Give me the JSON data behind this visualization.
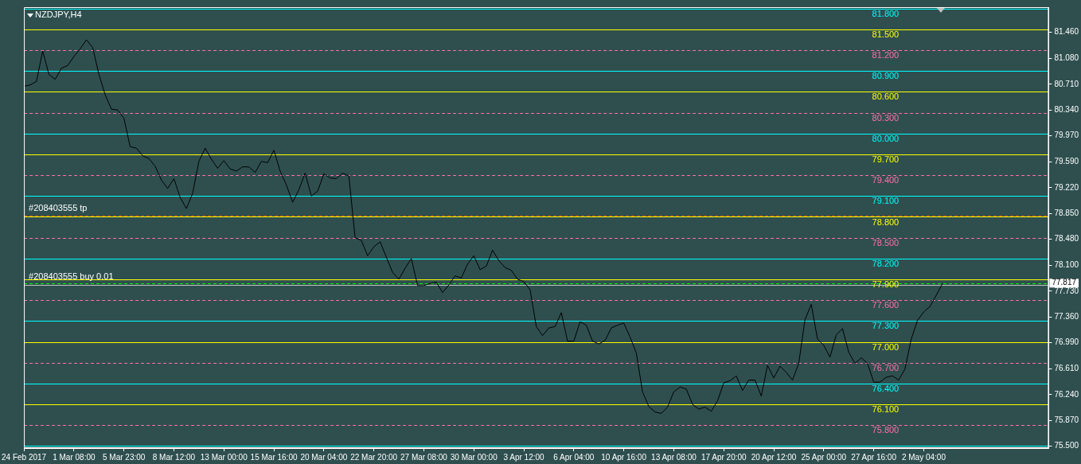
{
  "chart_data": {
    "type": "line",
    "title": "NZDJPY,H4",
    "categories": [
      "24 Feb 2017",
      null,
      null,
      null,
      null,
      null,
      null,
      null,
      "1 Mar 08:00",
      null,
      null,
      null,
      null,
      null,
      null,
      null,
      "5 Mar 23:00",
      null,
      null,
      null,
      null,
      null,
      null,
      null,
      "8 Mar 12:00",
      null,
      null,
      null,
      null,
      null,
      null,
      null,
      "13 Mar 00:00",
      null,
      null,
      null,
      null,
      null,
      null,
      null,
      "15 Mar 16:00",
      null,
      null,
      null,
      null,
      null,
      null,
      null,
      "20 Mar 04:00",
      null,
      null,
      null,
      null,
      null,
      null,
      null,
      "22 Mar 20:00",
      null,
      null,
      null,
      null,
      null,
      null,
      null,
      "27 Mar 08:00",
      null,
      null,
      null,
      null,
      null,
      null,
      null,
      "30 Mar 00:00",
      null,
      null,
      null,
      null,
      null,
      null,
      null,
      "3 Apr 12:00",
      null,
      null,
      null,
      null,
      null,
      null,
      null,
      "6 Apr 04:00",
      null,
      null,
      null,
      null,
      null,
      null,
      null,
      "10 Apr 16:00",
      null,
      null,
      null,
      null,
      null,
      null,
      null,
      "13 Apr 08:00",
      null,
      null,
      null,
      null,
      null,
      null,
      null,
      "17 Apr 20:00",
      null,
      null,
      null,
      null,
      null,
      null,
      null,
      "20 Apr 12:00",
      null,
      null,
      null,
      null,
      null,
      null,
      null,
      "25 Apr 00:00",
      null,
      null,
      null,
      null,
      null,
      null,
      null,
      "27 Apr 16:00",
      null,
      null,
      null,
      null,
      null,
      null,
      null,
      "2 May 04:00",
      null,
      null,
      null,
      null,
      null,
      null,
      null,
      null,
      null,
      null,
      null,
      null,
      null,
      null,
      null,
      null,
      null,
      null,
      null,
      null
    ],
    "values": [
      80.68,
      80.7,
      80.75,
      81.19,
      80.85,
      80.78,
      80.94,
      80.98,
      81.11,
      81.22,
      81.35,
      81.24,
      80.85,
      80.56,
      80.35,
      80.34,
      80.22,
      79.81,
      79.79,
      79.68,
      79.64,
      79.53,
      79.33,
      79.21,
      79.35,
      79.08,
      78.92,
      79.14,
      79.6,
      79.79,
      79.63,
      79.5,
      79.61,
      79.49,
      79.46,
      79.52,
      79.52,
      79.44,
      79.6,
      79.58,
      79.76,
      79.46,
      79.26,
      79.01,
      79.19,
      79.43,
      79.1,
      79.17,
      79.42,
      79.36,
      79.35,
      79.43,
      79.39,
      78.5,
      78.46,
      78.24,
      78.37,
      78.44,
      78.22,
      78.0,
      77.9,
      78.06,
      78.2,
      77.81,
      77.81,
      77.84,
      77.86,
      77.71,
      77.82,
      77.95,
      77.92,
      78.12,
      78.24,
      78.04,
      78.09,
      78.32,
      78.17,
      78.07,
      78.03,
      77.9,
      77.87,
      77.75,
      77.22,
      77.09,
      77.2,
      77.22,
      77.42,
      77.01,
      77.01,
      77.29,
      77.24,
      77.01,
      76.97,
      77.02,
      77.2,
      77.24,
      77.27,
      77.07,
      76.84,
      76.28,
      76.07,
      75.99,
      75.97,
      76.06,
      76.28,
      76.35,
      76.32,
      76.1,
      76.03,
      76.06,
      76.0,
      76.15,
      76.41,
      76.44,
      76.51,
      76.3,
      76.45,
      76.45,
      76.22,
      76.66,
      76.48,
      76.65,
      76.56,
      76.45,
      76.69,
      77.32,
      77.54,
      77.04,
      76.95,
      76.78,
      77.1,
      77.19,
      76.85,
      76.69,
      76.77,
      76.69,
      76.42,
      76.42,
      76.49,
      76.51,
      76.45,
      76.61,
      77.04,
      77.31,
      77.43,
      77.51,
      77.67,
      77.84,
      null,
      null,
      null,
      null,
      null,
      null,
      null,
      null,
      null,
      null,
      null,
      null,
      null,
      null,
      null,
      null,
      null
    ],
    "color": "#000000",
    "marker": "none",
    "line_style": "solid",
    "ylim": [
      75.47,
      81.82
    ],
    "yticks": [
      {
        "value": 75.5,
        "label": "75.500"
      },
      {
        "value": 75.87,
        "label": "75.870"
      },
      {
        "value": 76.24,
        "label": "76.240"
      },
      {
        "value": 76.61,
        "label": "76.610"
      },
      {
        "value": 76.99,
        "label": "76.990"
      },
      {
        "value": 77.36,
        "label": "77.360"
      },
      {
        "value": 77.73,
        "label": "77.730"
      },
      {
        "value": 78.1,
        "label": "78.100"
      },
      {
        "value": 78.48,
        "label": "78.480"
      },
      {
        "value": 78.85,
        "label": "78.850"
      },
      {
        "value": 79.22,
        "label": "79.220"
      },
      {
        "value": 79.59,
        "label": "79.590"
      },
      {
        "value": 79.97,
        "label": "79.970"
      },
      {
        "value": 80.34,
        "label": "80.340"
      },
      {
        "value": 80.71,
        "label": "80.710"
      },
      {
        "value": 81.08,
        "label": "81.080"
      },
      {
        "value": 81.46,
        "label": "81.460"
      }
    ],
    "ref_lines": [
      {
        "axis": "y",
        "value": 81.8,
        "label": "81.800",
        "color": "#00ffff",
        "line_style": "solid"
      },
      {
        "axis": "y",
        "value": 81.5,
        "label": "81.500",
        "color": "#ffff00",
        "line_style": "solid"
      },
      {
        "axis": "y",
        "value": 81.2,
        "label": "81.200",
        "color": "#ff6fa8",
        "line_style": "dashed"
      },
      {
        "axis": "y",
        "value": 80.9,
        "label": "80.900",
        "color": "#00ffff",
        "line_style": "solid"
      },
      {
        "axis": "y",
        "value": 80.6,
        "label": "80.600",
        "color": "#ffff00",
        "line_style": "solid"
      },
      {
        "axis": "y",
        "value": 80.3,
        "label": "80.300",
        "color": "#ff6fa8",
        "line_style": "dashed"
      },
      {
        "axis": "y",
        "value": 80.0,
        "label": "80.000",
        "color": "#00ffff",
        "line_style": "solid"
      },
      {
        "axis": "y",
        "value": 79.7,
        "label": "79.700",
        "color": "#ffff00",
        "line_style": "solid"
      },
      {
        "axis": "y",
        "value": 79.4,
        "label": "79.400",
        "color": "#ff6fa8",
        "line_style": "dashed"
      },
      {
        "axis": "y",
        "value": 79.1,
        "label": "79.100",
        "color": "#00ffff",
        "line_style": "solid"
      },
      {
        "axis": "y",
        "value": 78.82,
        "color": "#ff6600",
        "line_style": "dashed"
      },
      {
        "axis": "y",
        "value": 78.8,
        "label": "78.800",
        "color": "#ffff00",
        "line_style": "solid"
      },
      {
        "axis": "y",
        "value": 78.5,
        "label": "78.500",
        "color": "#ff6fa8",
        "line_style": "dashed"
      },
      {
        "axis": "y",
        "value": 78.2,
        "label": "78.200",
        "color": "#00ffff",
        "line_style": "solid"
      },
      {
        "axis": "y",
        "value": 77.9,
        "label": "77.900",
        "color": "#ffff00",
        "line_style": "solid"
      },
      {
        "axis": "y",
        "value": 77.84,
        "color": "#00ff00",
        "line_style": "dashed"
      },
      {
        "axis": "y",
        "value": 77.6,
        "label": "77.600",
        "color": "#ff6fa8",
        "line_style": "dashed"
      },
      {
        "axis": "y",
        "value": 77.3,
        "label": "77.300",
        "color": "#00ffff",
        "line_style": "solid"
      },
      {
        "axis": "y",
        "value": 77.0,
        "label": "77.000",
        "color": "#ffff00",
        "line_style": "solid"
      },
      {
        "axis": "y",
        "value": 76.7,
        "label": "76.700",
        "color": "#ff6fa8",
        "line_style": "dashed"
      },
      {
        "axis": "y",
        "value": 76.4,
        "label": "76.400",
        "color": "#00ffff",
        "line_style": "solid"
      },
      {
        "axis": "y",
        "value": 76.1,
        "label": "76.100",
        "color": "#ffff00",
        "line_style": "solid"
      },
      {
        "axis": "y",
        "value": 75.8,
        "label": "75.800",
        "color": "#ff6fa8",
        "line_style": "dashed"
      },
      {
        "axis": "y",
        "value": 75.5,
        "color": "#00ffff",
        "line_style": "solid"
      },
      {
        "axis": "y",
        "value": 77.817,
        "label": "77.817",
        "color": "#c0c0c0",
        "line_style": "solid"
      }
    ],
    "annotations": [
      {
        "text": "#208403555 tp",
        "x": "24 Feb 2017",
        "y": 78.82
      },
      {
        "text": "#208403555 buy 0.01",
        "x": "24 Feb 2017",
        "y": 77.84
      }
    ]
  }
}
